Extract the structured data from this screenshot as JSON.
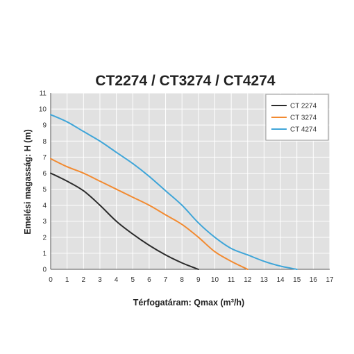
{
  "chart_data": {
    "type": "line",
    "title": "CT2274 / CT3274 / CT4274",
    "xlabel": "Térfogatáram: Qmax (m³/h)",
    "ylabel": "Emelési magasság: H (m)",
    "xlim": [
      0,
      17
    ],
    "ylim": [
      0,
      11
    ],
    "xticks": [
      "0",
      "1",
      "2",
      "3",
      "4",
      "5",
      "6",
      "7",
      "8",
      "9",
      "10",
      "11",
      "12",
      "13",
      "14",
      "15",
      "16",
      "17"
    ],
    "yticks": [
      "0",
      "1",
      "2",
      "3",
      "4",
      "5",
      "6",
      "7",
      "8",
      "9",
      "10",
      "11"
    ],
    "grid": true,
    "legend_position": "top-right",
    "colors": {
      "plot_background": "#e1e1e1",
      "grid": "#ffffff",
      "axis": "#555555"
    },
    "series": [
      {
        "name": "CT 2274",
        "color": "#2b2b2b",
        "points": [
          [
            0,
            6.0
          ],
          [
            1,
            5.5
          ],
          [
            2,
            4.9
          ],
          [
            3,
            4.0
          ],
          [
            4,
            3.0
          ],
          [
            5,
            2.2
          ],
          [
            6,
            1.5
          ],
          [
            7,
            0.9
          ],
          [
            8,
            0.4
          ],
          [
            9,
            0.0
          ]
        ]
      },
      {
        "name": "CT 3274",
        "color": "#f28a30",
        "points": [
          [
            0,
            6.9
          ],
          [
            1,
            6.4
          ],
          [
            2,
            6.0
          ],
          [
            3,
            5.5
          ],
          [
            4,
            5.0
          ],
          [
            5,
            4.5
          ],
          [
            6,
            4.0
          ],
          [
            7,
            3.4
          ],
          [
            8,
            2.8
          ],
          [
            9,
            2.0
          ],
          [
            10,
            1.1
          ],
          [
            11,
            0.5
          ],
          [
            12,
            0.0
          ]
        ]
      },
      {
        "name": "CT 4274",
        "color": "#3fa5d8",
        "points": [
          [
            0,
            9.65
          ],
          [
            1,
            9.2
          ],
          [
            2,
            8.6
          ],
          [
            3,
            8.0
          ],
          [
            4,
            7.3
          ],
          [
            5,
            6.6
          ],
          [
            6,
            5.8
          ],
          [
            7,
            4.9
          ],
          [
            8,
            4.0
          ],
          [
            9,
            2.9
          ],
          [
            10,
            2.0
          ],
          [
            11,
            1.3
          ],
          [
            12,
            0.9
          ],
          [
            13,
            0.5
          ],
          [
            14,
            0.2
          ],
          [
            15,
            0.0
          ]
        ]
      }
    ]
  }
}
